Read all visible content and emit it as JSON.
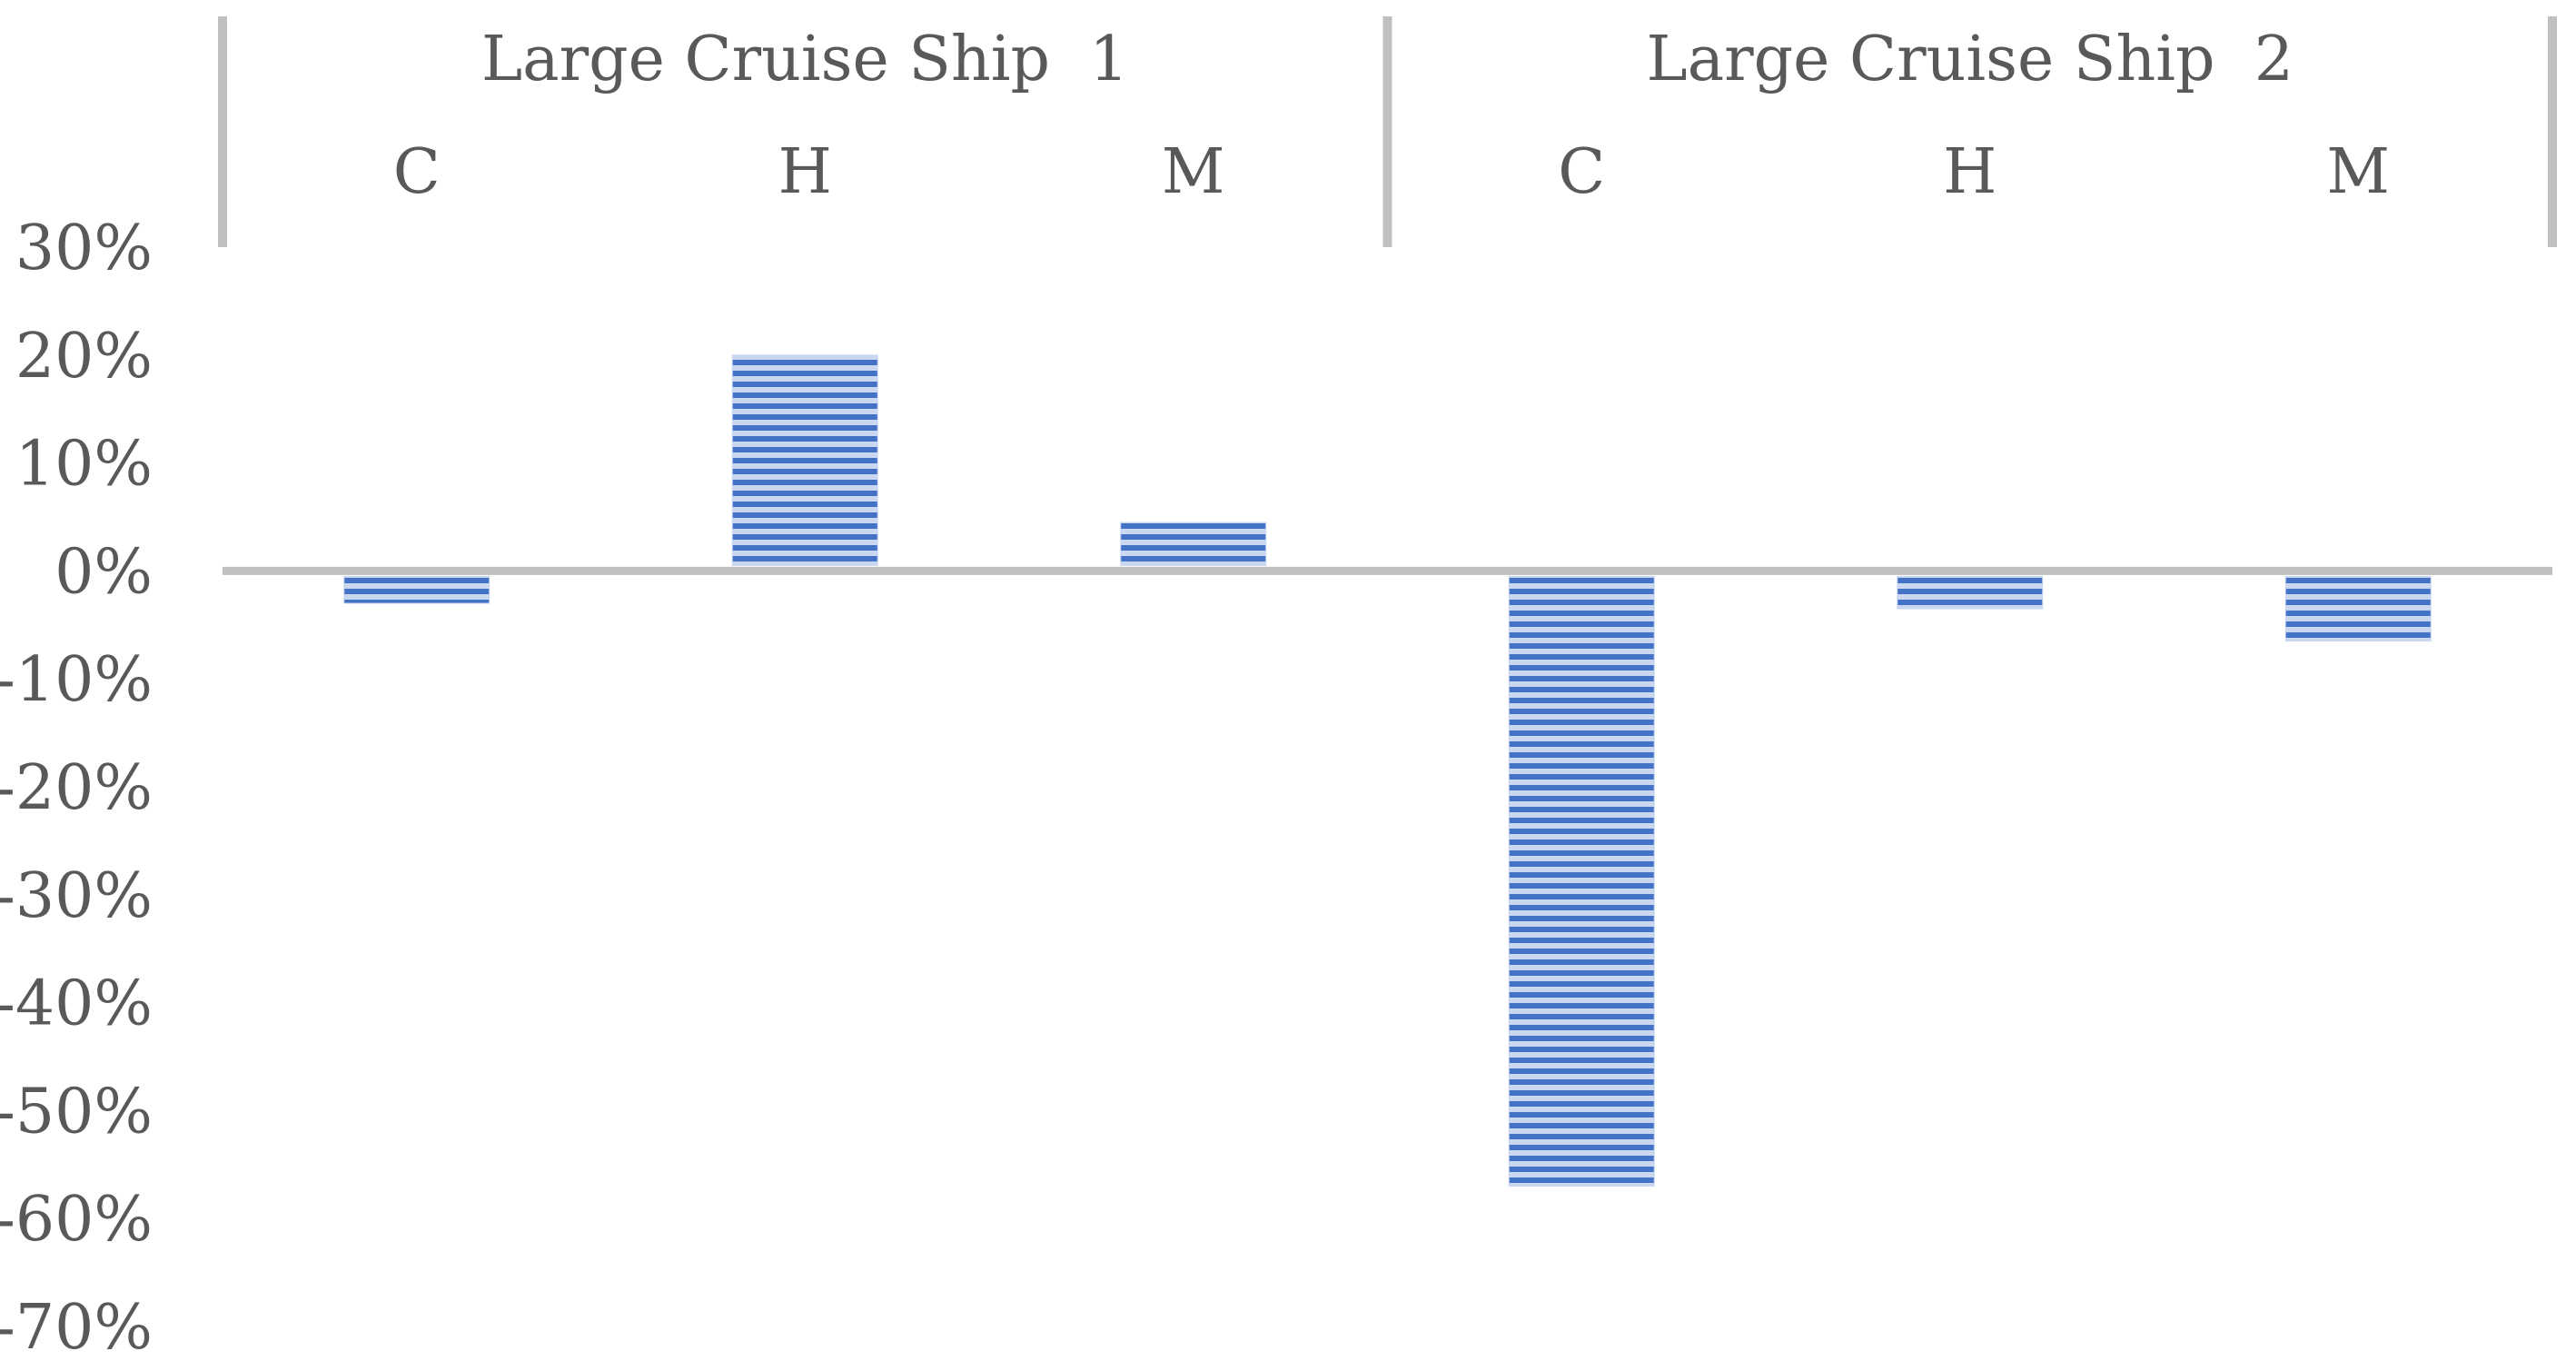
{
  "chart_data": {
    "type": "bar",
    "groups": [
      {
        "label": "Large Cruise Ship  1",
        "categories": [
          "C",
          "H",
          "M"
        ]
      },
      {
        "label": "Large Cruise Ship  2",
        "categories": [
          "C",
          "H",
          "M"
        ]
      }
    ],
    "series": [
      {
        "values": [
          -3,
          20,
          4.5,
          -57,
          -3.5,
          -6.5
        ]
      }
    ],
    "value_format": "percent",
    "ylim": [
      -70,
      30
    ],
    "yticks": [
      30,
      20,
      10,
      0,
      -10,
      -20,
      -30,
      -40,
      -50,
      -60,
      -70
    ],
    "ytick_labels": [
      "30%",
      "20%",
      "10%",
      "0%",
      "-10%",
      "-20%",
      "-30%",
      "-40%",
      "-50%",
      "-60%",
      "-70%"
    ],
    "grid": false,
    "legend": "none",
    "bar_fill": "horizontal-stripes",
    "colors": {
      "bar": "#4472c4",
      "bar_light": "#c9d7f1",
      "axis": "#bfbfbf",
      "text": "#595959"
    }
  }
}
